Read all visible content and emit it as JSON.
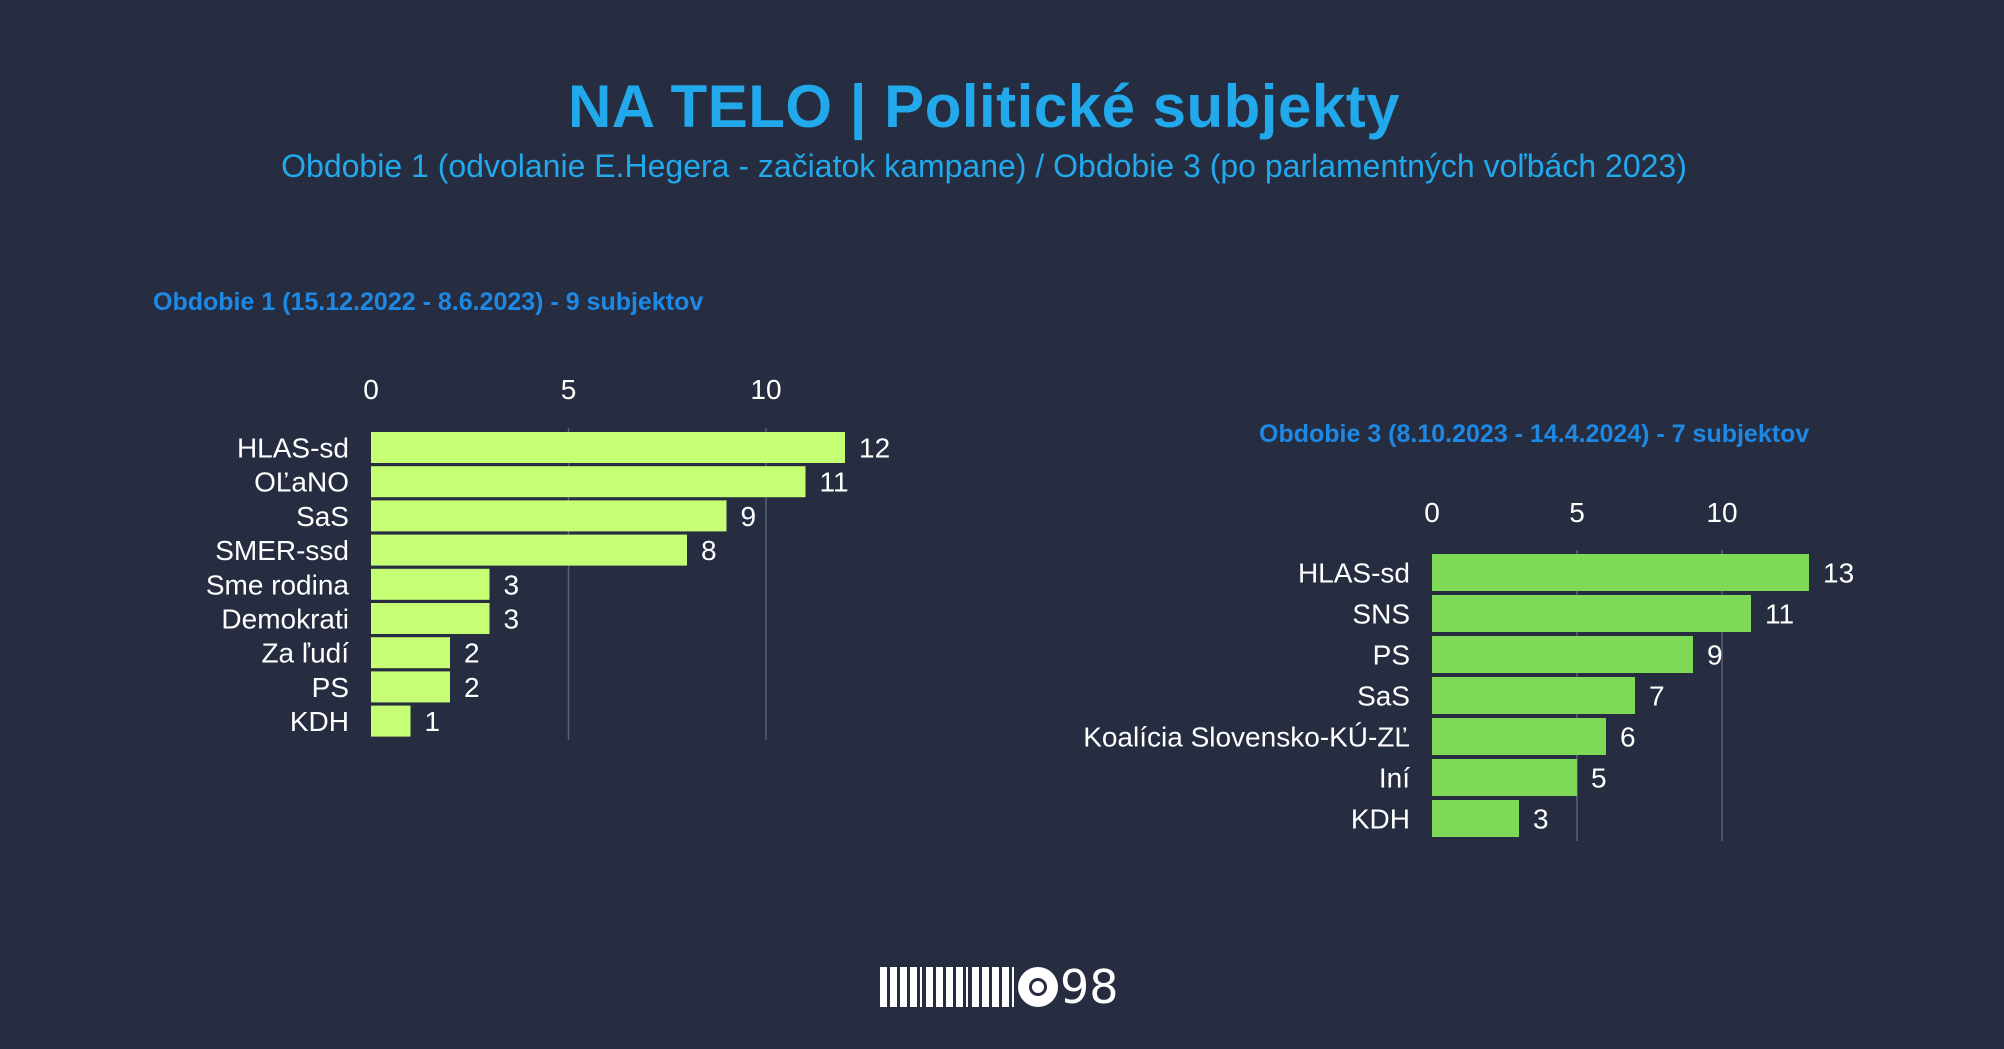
{
  "header": {
    "title": "NA TELO | Politické subjekty",
    "subtitle": "Obdobie 1 (odvolanie E.Hegera - začiatok kampane) / Obdobie 3 (po parlamentných voľbách 2023)"
  },
  "colors": {
    "background": "#262d40",
    "title": "#21a9eb",
    "panel_title": "#1e88e5",
    "bar_period1": "#c6ff73",
    "bar_period3": "#7ed957",
    "gridline": "#5b6274"
  },
  "chart_data": [
    {
      "type": "bar",
      "orientation": "horizontal",
      "title": "Obdobie 1 (15.12.2022 - 8.6.2023) - 9 subjektov",
      "categories": [
        "HLAS-sd",
        "OĽaNO",
        "SaS",
        "SMER-ssd",
        "Sme rodina",
        "Demokrati",
        "Za ľudí",
        "PS",
        "KDH"
      ],
      "values": [
        12,
        11,
        9,
        8,
        3,
        3,
        2,
        2,
        1
      ],
      "xticks": [
        "0",
        "5",
        "10"
      ],
      "xlim": [
        0,
        12
      ],
      "grid": true,
      "axis_position": "top",
      "bar_color": "#c6ff73"
    },
    {
      "type": "bar",
      "orientation": "horizontal",
      "title": "Obdobie 3 (8.10.2023 - 14.4.2024) - 7 subjektov",
      "categories": [
        "HLAS-sd",
        "SNS",
        "PS",
        "SaS",
        "Koalícia Slovensko-KÚ-ZĽ",
        "Iní",
        "KDH"
      ],
      "values": [
        13,
        11,
        9,
        7,
        6,
        5,
        3
      ],
      "xticks": [
        "0",
        "5",
        "10"
      ],
      "xlim": [
        0,
        13
      ],
      "grid": true,
      "axis_position": "top",
      "bar_color": "#7ed957"
    }
  ],
  "logo": {
    "text": "98",
    "icon": "memo98-logo"
  }
}
